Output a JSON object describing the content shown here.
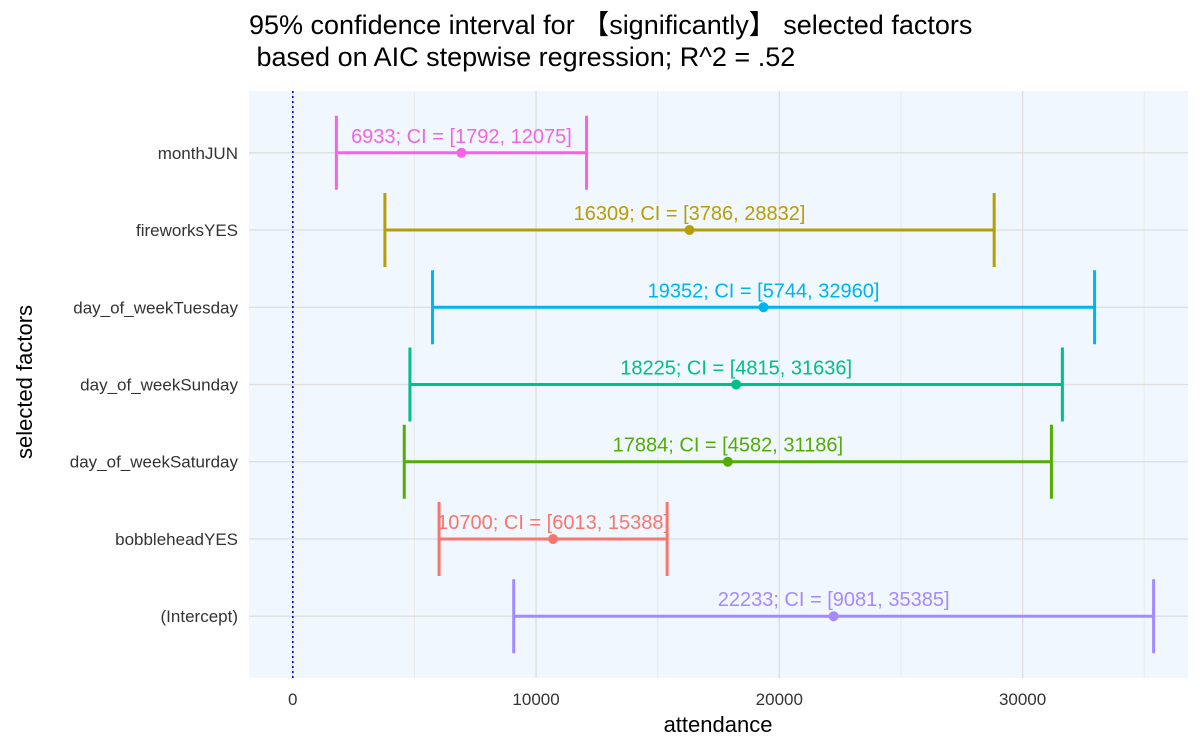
{
  "chart_data": {
    "type": "errorbar",
    "title_lines": [
      "95% confidence interval for 【significantly】 selected factors",
      " based on AIC stepwise regression; R^2 = .52"
    ],
    "xlabel": "attendance",
    "ylabel": "selected factors",
    "xlim": [
      -1800,
      36800
    ],
    "x_ticks": [
      0,
      10000,
      20000,
      30000
    ],
    "x_tick_labels": [
      "0",
      "10000",
      "20000",
      "30000"
    ],
    "reference_line": {
      "x": 0,
      "style": "dotted",
      "color": "#0000ff"
    },
    "panel_background": "#f0f7fe",
    "grid": true,
    "factors": [
      {
        "name": "monthJUN",
        "estimate": 6933,
        "low": 1792,
        "high": 12075,
        "label": "6933; CI = [1792, 12075]",
        "color": "#f464e3"
      },
      {
        "name": "fireworksYES",
        "estimate": 16309,
        "low": 3786,
        "high": 28832,
        "label": "16309; CI = [3786, 28832]",
        "color": "#b79f00"
      },
      {
        "name": "day_of_weekTuesday",
        "estimate": 19352,
        "low": 5744,
        "high": 32960,
        "label": "19352; CI = [5744, 32960]",
        "color": "#00b4ef"
      },
      {
        "name": "day_of_weekSunday",
        "estimate": 18225,
        "low": 4815,
        "high": 31636,
        "label": "18225; CI = [4815, 31636]",
        "color": "#00bf8b"
      },
      {
        "name": "day_of_weekSaturday",
        "estimate": 17884,
        "low": 4582,
        "high": 31186,
        "label": "17884; CI = [4582, 31186]",
        "color": "#52ad00"
      },
      {
        "name": "bobbleheadYES",
        "estimate": 10700,
        "low": 6013,
        "high": 15388,
        "label": "10700; CI = [6013, 15388]",
        "color": "#f8766d"
      },
      {
        "name": "(Intercept)",
        "estimate": 22233,
        "low": 9081,
        "high": 35385,
        "label": "22233; CI = [9081, 35385]",
        "color": "#a58afe"
      }
    ]
  }
}
